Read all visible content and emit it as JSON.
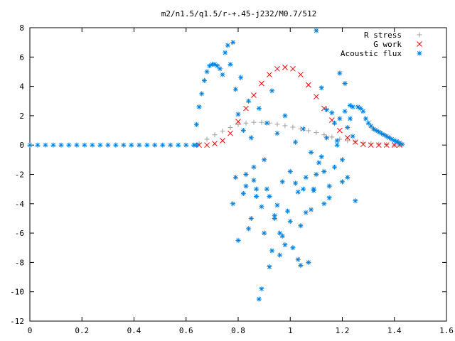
{
  "chart_data": {
    "type": "scatter",
    "title": "m2/n1.5/q1.5/r-+.45-j232/M0.7/512",
    "xlabel": "",
    "ylabel": "",
    "xlim": [
      0,
      1.6
    ],
    "ylim": [
      -12,
      8
    ],
    "xticks": [
      "0",
      "0.2",
      "0.4",
      "0.6",
      "0.8",
      "1",
      "1.2",
      "1.4",
      "1.6"
    ],
    "yticks": [
      "8",
      "6",
      "4",
      "2",
      "0",
      "-2",
      "-4",
      "-6",
      "-8",
      "-10",
      "-12"
    ],
    "grid": false,
    "legend_position": "top-right",
    "series": [
      {
        "name": "R stress",
        "marker": "+",
        "color": "#a0a0a0",
        "x": [
          0.65,
          0.68,
          0.71,
          0.74,
          0.77,
          0.8,
          0.83,
          0.86,
          0.89,
          0.92,
          0.95,
          0.98,
          1.01,
          1.04,
          1.07,
          1.1,
          1.13,
          1.16,
          1.19,
          1.22,
          1.25,
          1.28,
          1.31,
          1.34,
          1.37,
          1.4,
          1.42
        ],
        "y": [
          0.1,
          0.4,
          0.7,
          0.95,
          1.2,
          1.4,
          1.5,
          1.55,
          1.55,
          1.5,
          1.42,
          1.32,
          1.22,
          1.1,
          0.98,
          0.85,
          0.7,
          0.55,
          0.4,
          0.3,
          0.22,
          0.16,
          0.1,
          0.06,
          0.03,
          0.0,
          0.0
        ]
      },
      {
        "name": "G work",
        "marker": "x",
        "color": "#ff0000",
        "x": [
          0.65,
          0.68,
          0.71,
          0.74,
          0.77,
          0.8,
          0.83,
          0.86,
          0.89,
          0.92,
          0.95,
          0.98,
          1.01,
          1.04,
          1.07,
          1.1,
          1.13,
          1.16,
          1.19,
          1.22,
          1.25,
          1.28,
          1.31,
          1.34,
          1.37,
          1.4,
          1.42
        ],
        "y": [
          0.0,
          0.0,
          0.1,
          0.3,
          0.8,
          1.6,
          2.5,
          3.4,
          4.2,
          4.8,
          5.2,
          5.3,
          5.2,
          4.8,
          4.1,
          3.3,
          2.5,
          1.7,
          1.0,
          0.5,
          0.2,
          0.05,
          0.0,
          0.0,
          0.0,
          0.0,
          0.0
        ]
      },
      {
        "name": "Acoustic flux",
        "marker": "*",
        "color": "#0080e0",
        "x": [
          0.0,
          0.03,
          0.06,
          0.09,
          0.12,
          0.15,
          0.18,
          0.21,
          0.24,
          0.27,
          0.3,
          0.33,
          0.36,
          0.39,
          0.42,
          0.45,
          0.48,
          0.51,
          0.54,
          0.57,
          0.6,
          0.63,
          0.64,
          0.64,
          0.65,
          0.66,
          0.67,
          0.68,
          0.69,
          0.7,
          0.71,
          0.72,
          0.73,
          0.74,
          0.75,
          0.76,
          0.77,
          0.78,
          0.79,
          0.8,
          0.81,
          0.82,
          0.83,
          0.84,
          0.85,
          0.86,
          0.87,
          0.88,
          0.89,
          0.9,
          0.91,
          0.92,
          0.93,
          0.94,
          0.95,
          0.96,
          0.97,
          0.98,
          0.99,
          1.0,
          1.01,
          1.02,
          1.03,
          1.04,
          1.05,
          1.06,
          1.07,
          1.08,
          1.09,
          1.1,
          1.11,
          1.12,
          1.13,
          1.14,
          1.15,
          1.16,
          1.17,
          1.18,
          1.19,
          1.2,
          1.21,
          1.22,
          1.23,
          1.24,
          1.25,
          0.78,
          0.8,
          0.83,
          0.85,
          0.87,
          0.88,
          0.9,
          0.92,
          0.94,
          0.96,
          0.98,
          1.0,
          1.03,
          1.05,
          1.08,
          1.1,
          1.13,
          1.15,
          1.18,
          1.2,
          1.22,
          0.79,
          0.82,
          0.84,
          0.86,
          0.89,
          0.91,
          0.93,
          0.95,
          0.97,
          1.02,
          1.04,
          1.06,
          1.09,
          1.12,
          1.14,
          1.17,
          1.19,
          1.21,
          1.23,
          1.24,
          1.26,
          1.27,
          1.28,
          1.29,
          1.3,
          1.31,
          1.32,
          1.33,
          1.34,
          1.35,
          1.36,
          1.37,
          1.38,
          1.39,
          1.4,
          1.41,
          1.42,
          1.43
        ],
        "y": [
          0,
          0,
          0,
          0,
          0,
          0,
          0,
          0,
          0,
          0,
          0,
          0,
          0,
          0,
          0,
          0,
          0,
          0,
          0,
          0,
          0,
          0,
          0,
          1.4,
          2.6,
          3.5,
          4.4,
          5.0,
          5.4,
          5.5,
          5.5,
          5.4,
          5.2,
          4.8,
          6.3,
          6.8,
          5.5,
          7.0,
          3.8,
          2.1,
          4.6,
          1.0,
          -2.0,
          3.0,
          0.5,
          -1.5,
          -3.0,
          2.5,
          -4.2,
          -1.0,
          1.5,
          -3.5,
          3.7,
          -5.0,
          0.8,
          -6.0,
          -2.5,
          2.0,
          -4.5,
          -1.8,
          -7.0,
          0.2,
          -3.2,
          -5.5,
          1.1,
          -2.2,
          -8.0,
          -0.5,
          -3.0,
          7.8,
          -1.2,
          3.9,
          -4.0,
          0.5,
          -2.8,
          2.2,
          -1.5,
          0.0,
          1.8,
          -2.5,
          4.2,
          1.2,
          2.7,
          0.6,
          -3.8,
          -4.0,
          -6.5,
          -2.8,
          -5.0,
          -3.5,
          -10.5,
          -6.0,
          -8.3,
          -4.8,
          -7.5,
          -6.8,
          -5.2,
          -7.8,
          -3.0,
          -4.4,
          -2.0,
          -1.8,
          -3.6,
          0.3,
          -1.0,
          -2.2,
          -2.2,
          -3.3,
          -5.7,
          -2.4,
          -9.8,
          -3.0,
          -7.2,
          -4.1,
          -6.2,
          -2.6,
          -8.2,
          -4.6,
          -3.1,
          -0.8,
          2.4,
          1.5,
          4.9,
          2.3,
          1.8,
          2.6,
          2.6,
          2.5,
          2.3,
          1.8,
          1.5,
          1.3,
          1.1,
          1.0,
          0.9,
          0.8,
          0.7,
          0.6,
          0.5,
          0.4,
          0.3,
          0.25,
          0.15,
          0.05
        ]
      }
    ]
  }
}
